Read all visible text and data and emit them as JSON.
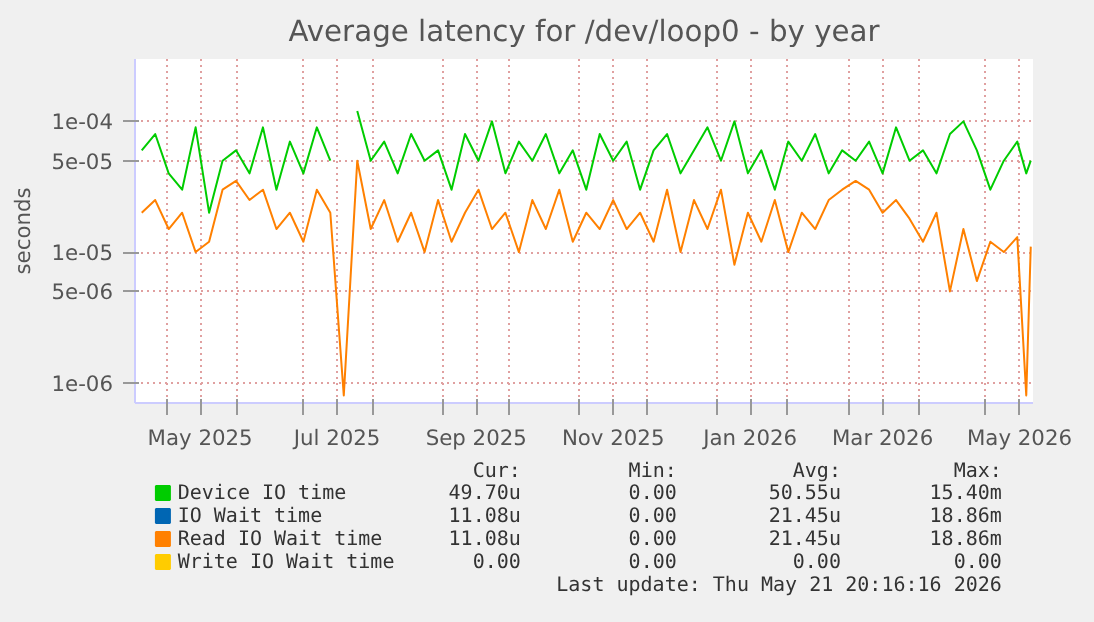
{
  "chart_data": {
    "type": "line",
    "title": "Average latency for /dev/loop0 - by year",
    "ylabel": "seconds",
    "log": "y",
    "grid": true,
    "legend": "bottom",
    "xlim": [
      "2025-04-17",
      "2026-05-22"
    ],
    "xticks": [
      {
        "value": "2025-05-01",
        "label": null
      },
      {
        "value": "2025-05-16",
        "label": "May 2025"
      },
      {
        "value": "2025-06-01",
        "label": null
      },
      {
        "value": "2025-07-01",
        "label": null
      },
      {
        "value": "2025-07-16",
        "label": "Jul 2025"
      },
      {
        "value": "2025-08-01",
        "label": null
      },
      {
        "value": "2025-09-01",
        "label": null
      },
      {
        "value": "2025-09-16",
        "label": "Sep 2025"
      },
      {
        "value": "2025-10-01",
        "label": null
      },
      {
        "value": "2025-11-01",
        "label": null
      },
      {
        "value": "2025-11-16",
        "label": "Nov 2025"
      },
      {
        "value": "2025-12-01",
        "label": null
      },
      {
        "value": "2026-01-01",
        "label": null
      },
      {
        "value": "2026-01-16",
        "label": "Jan 2026"
      },
      {
        "value": "2026-02-01",
        "label": null
      },
      {
        "value": "2026-03-01",
        "label": null
      },
      {
        "value": "2026-03-16",
        "label": "Mar 2026"
      },
      {
        "value": "2026-04-01",
        "label": null
      },
      {
        "value": "2026-05-01",
        "label": null
      },
      {
        "value": "2026-05-16",
        "label": "May 2026"
      }
    ],
    "ylim": [
      7e-07,
      0.0003
    ],
    "yticks": [
      {
        "value": 1e-06,
        "label": "1e-06"
      },
      {
        "value": 5e-06,
        "label": "5e-06"
      },
      {
        "value": 1e-05,
        "label": "1e-05"
      },
      {
        "value": 5e-05,
        "label": "5e-05"
      },
      {
        "value": 0.0001,
        "label": "1e-04"
      }
    ],
    "x": [
      "2025-04-20",
      "2025-04-26",
      "2025-05-02",
      "2025-05-08",
      "2025-05-14",
      "2025-05-20",
      "2025-05-26",
      "2025-06-01",
      "2025-06-07",
      "2025-06-13",
      "2025-06-19",
      "2025-06-25",
      "2025-07-01",
      "2025-07-07",
      "2025-07-13",
      "2025-07-19",
      "2025-07-25",
      "2025-07-31",
      "2025-08-06",
      "2025-08-12",
      "2025-08-18",
      "2025-08-24",
      "2025-08-30",
      "2025-09-05",
      "2025-09-11",
      "2025-09-17",
      "2025-09-23",
      "2025-09-29",
      "2025-10-05",
      "2025-10-11",
      "2025-10-17",
      "2025-10-23",
      "2025-10-29",
      "2025-11-04",
      "2025-11-10",
      "2025-11-16",
      "2025-11-22",
      "2025-11-28",
      "2025-12-04",
      "2025-12-10",
      "2025-12-16",
      "2025-12-22",
      "2025-12-28",
      "2026-01-03",
      "2026-01-09",
      "2026-01-15",
      "2026-01-21",
      "2026-01-27",
      "2026-02-02",
      "2026-02-08",
      "2026-02-14",
      "2026-02-20",
      "2026-02-26",
      "2026-03-04",
      "2026-03-10",
      "2026-03-16",
      "2026-03-22",
      "2026-03-28",
      "2026-04-03",
      "2026-04-09",
      "2026-04-15",
      "2026-04-21",
      "2026-04-27",
      "2026-05-03",
      "2026-05-09",
      "2026-05-15",
      "2026-05-19",
      "2026-05-21"
    ],
    "series": [
      {
        "name": "Device IO time",
        "color": "#00cc00",
        "values": [
          6e-05,
          8e-05,
          4e-05,
          3e-05,
          9e-05,
          2e-05,
          5e-05,
          6e-05,
          4e-05,
          9e-05,
          3e-05,
          7e-05,
          4e-05,
          9e-05,
          5e-05,
          null,
          0.00012,
          5e-05,
          7e-05,
          4e-05,
          8e-05,
          5e-05,
          6e-05,
          3e-05,
          8e-05,
          5e-05,
          0.0001,
          4e-05,
          7e-05,
          5e-05,
          8e-05,
          4e-05,
          6e-05,
          3e-05,
          8e-05,
          5e-05,
          7e-05,
          3e-05,
          6e-05,
          8e-05,
          4e-05,
          6e-05,
          9e-05,
          5e-05,
          0.0001,
          4e-05,
          6e-05,
          3e-05,
          7e-05,
          5e-05,
          8e-05,
          4e-05,
          6e-05,
          5e-05,
          7e-05,
          4e-05,
          9e-05,
          5e-05,
          6e-05,
          4e-05,
          8e-05,
          0.0001,
          6e-05,
          3e-05,
          5e-05,
          7e-05,
          4e-05,
          5e-05
        ]
      },
      {
        "name": "IO Wait time",
        "color": "#0066b3",
        "values": [
          null,
          null,
          null,
          null,
          null,
          null,
          null,
          null,
          null,
          null,
          null,
          null,
          null,
          null,
          null,
          null,
          null,
          null,
          null,
          null,
          null,
          null,
          null,
          null,
          null,
          null,
          null,
          null,
          null,
          null,
          null,
          null,
          null,
          null,
          null,
          null,
          null,
          null,
          null,
          null,
          null,
          null,
          null,
          null,
          null,
          null,
          null,
          null,
          null,
          null,
          null,
          null,
          null,
          null,
          null,
          null,
          null,
          null,
          null,
          null,
          null,
          null,
          null,
          null,
          null,
          null,
          null,
          null
        ]
      },
      {
        "name": "Read IO Wait time",
        "color": "#ff8000",
        "values": [
          2e-05,
          2.5e-05,
          1.5e-05,
          2e-05,
          1e-05,
          1.2e-05,
          3e-05,
          3.5e-05,
          2.5e-05,
          3e-05,
          1.5e-05,
          2e-05,
          1.2e-05,
          3e-05,
          2e-05,
          8e-07,
          5e-05,
          1.5e-05,
          2.5e-05,
          1.2e-05,
          2e-05,
          1e-05,
          2.5e-05,
          1.2e-05,
          2e-05,
          3e-05,
          1.5e-05,
          2e-05,
          1e-05,
          2.5e-05,
          1.5e-05,
          3e-05,
          1.2e-05,
          2e-05,
          1.5e-05,
          2.5e-05,
          1.5e-05,
          2e-05,
          1.2e-05,
          3e-05,
          1e-05,
          2.5e-05,
          1.5e-05,
          3e-05,
          8e-06,
          2e-05,
          1.2e-05,
          2.5e-05,
          1e-05,
          2e-05,
          1.5e-05,
          2.5e-05,
          3e-05,
          3.5e-05,
          3e-05,
          2e-05,
          2.5e-05,
          1.8e-05,
          1.2e-05,
          2e-05,
          5e-06,
          1.5e-05,
          6e-06,
          1.2e-05,
          1e-05,
          1.3e-05,
          8e-07,
          1.1e-05
        ]
      },
      {
        "name": "Write IO Wait time",
        "color": "#ffcc00",
        "values": [
          null,
          null,
          null,
          null,
          null,
          null,
          null,
          null,
          null,
          null,
          null,
          null,
          null,
          null,
          null,
          null,
          null,
          null,
          null,
          null,
          null,
          null,
          null,
          null,
          null,
          null,
          null,
          null,
          null,
          null,
          null,
          null,
          null,
          null,
          null,
          null,
          null,
          null,
          null,
          null,
          null,
          null,
          null,
          null,
          null,
          null,
          null,
          null,
          null,
          null,
          null,
          null,
          null,
          null,
          null,
          null,
          null,
          null,
          null,
          null,
          null,
          null,
          null,
          null,
          null,
          null,
          null,
          null
        ]
      }
    ],
    "annotations": [
      "Cur:",
      "Min:",
      "Avg:",
      "Max:",
      "49.70u",
      "0.00",
      "50.55u",
      "15.40m",
      "11.08u",
      "0.00",
      "21.45u",
      "18.86m",
      "11.08u",
      "0.00",
      "21.45u",
      "18.86m",
      "0.00",
      "0.00",
      "0.00",
      "0.00",
      "Last update: Thu May 21 20:16:16 2026"
    ]
  }
}
